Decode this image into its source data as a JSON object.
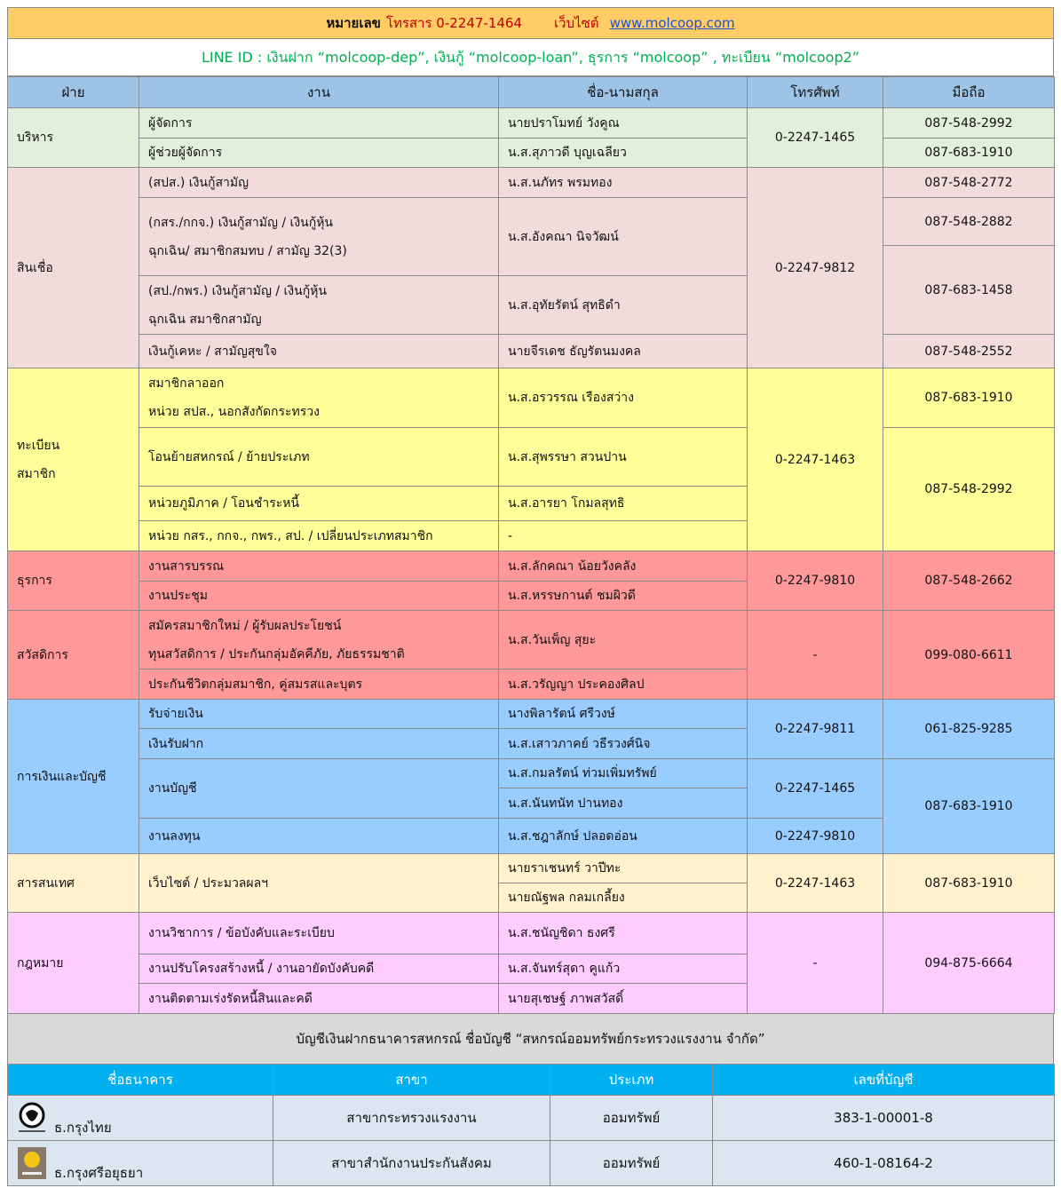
{
  "header": {
    "fax_label": "หมายเลข",
    "fax": "โทรสาร 0-2247-1464",
    "website_label": "เว็บไซต์",
    "website": "www.molcoop.com",
    "line_ids": "LINE ID :  เงินฝาก “molcoop-dep”,   เงินกู้ “molcoop-loan”,   ธุรการ “molcoop” ,   ทะเบียน “molcoop2”"
  },
  "columns": [
    "ฝ่าย",
    "งาน",
    "ชื่อ-นามสกุล",
    "โทรศัพท์",
    "มือถือ"
  ],
  "departments": [
    {
      "name": "บริหาร",
      "color": "#e2efda",
      "jobs": [
        "ผู้จัดการ",
        "ผู้ช่วยผู้จัดการ"
      ],
      "staff": [
        "นายปราโมทย์  วังคูณ",
        "น.ส.สุภาวดี  บุญเฉลียว"
      ],
      "phones": [
        "0-2247-1465"
      ],
      "mobiles": [
        "087-548-2992",
        "087-683-1910"
      ]
    },
    {
      "name": "สินเชื่อ",
      "color": "#f2dcdb",
      "jobs": [
        "(สปส.) เงินกู้สามัญ",
        "(กสร./กกจ.) เงินกู้สามัญ / เงินกู้หุ้น\nฉุกเฉิน/ สมาชิกสมทบ / สามัญ 32(3)",
        "(สป./กพร.) เงินกู้สามัญ / เงินกู้หุ้น\nฉุกเฉิน สมาชิกสามัญ",
        "เงินกู้เคหะ / สามัญสุขใจ"
      ],
      "staff": [
        "น.ส.นภัทร  พรมทอง",
        "น.ส.อังคณา นิจวัฒน์",
        "น.ส.อุทัยรัตน์ สุทธิดำ",
        "นายจีรเดช  ธัญรัตนมงคล"
      ],
      "phones": [
        "0-2247-9812"
      ],
      "mobiles": [
        "087-548-2772",
        "087-548-2882",
        "087-683-1458",
        "087-548-2552"
      ]
    },
    {
      "name": "ทะเบียน\nสมาชิก",
      "color": "#ffff99",
      "jobs": [
        "สมาชิกลาออก\nหน่วย สปส., นอกสังกัดกระทรวง",
        "โอนย้ายสหกรณ์ / ย้ายประเภท",
        "หน่วยภูมิภาค / โอนชำระหนี้",
        "หน่วย กสร., กกจ., กพร., สป. / เปลี่ยนประเภทสมาชิก"
      ],
      "staff": [
        "น.ส.อรวรรณ  เรืองสว่าง",
        "น.ส.สุพรรษา  สวนปาน",
        "น.ส.อารยา  โกมลสุทธิ",
        "-"
      ],
      "phones": [
        "0-2247-1463"
      ],
      "mobiles": [
        "087-683-1910",
        "087-548-2992"
      ]
    },
    {
      "name": "ธุรการ",
      "color": "#ff9999",
      "jobs": [
        "งานสารบรรณ",
        "งานประชุม"
      ],
      "staff": [
        "น.ส.ลักคณา  น้อยวังคลัง",
        "น.ส.หรรษกานต์  ชมผิวดี"
      ],
      "phones": [
        "0-2247-9810"
      ],
      "mobiles": [
        "087-548-2662"
      ]
    },
    {
      "name": "สวัสดิการ",
      "color": "#ff9999",
      "jobs": [
        "สมัครสมาชิกใหม่ / ผู้รับผลประโยชน์\nทุนสวัสดิการ / ประกันกลุ่มอัคคีภัย, ภัยธรรมชาติ",
        "ประกันชีวิตกลุ่มสมาชิก, คู่สมรสและบุตร"
      ],
      "staff": [
        "น.ส.วันเพ็ญ  สุยะ",
        "น.ส.วรัญญา  ประคองศิลป"
      ],
      "phones": [
        "-"
      ],
      "mobiles": [
        "099-080-6611"
      ]
    },
    {
      "name": "การเงินและบัญชี",
      "color": "#99ccff",
      "jobs": [
        "รับจ่ายเงิน",
        "เงินรับฝาก",
        "งานบัญชี",
        "งานลงทุน"
      ],
      "staff": [
        "นางพิลารัตน์  ศรีวงษ์",
        "น.ส.เสาวภาคย์  วธีรวงศ์นิจ",
        "น.ส.กมลรัตน์  ท่วมเพิ่มทรัพย์",
        "น.ส.นันทนัท  ปานทอง",
        "น.ส.ชฎาลักษ์  ปลอดอ่อน"
      ],
      "phones": [
        "0-2247-9811",
        "0-2247-1465",
        "0-2247-9810"
      ],
      "mobiles": [
        "061-825-9285",
        "087-683-1910"
      ]
    },
    {
      "name": "สารสนเทศ",
      "color": "#fff2cc",
      "jobs": [
        "เว็บไซต์ / ประมวลผลฯ"
      ],
      "staff": [
        "นายราเชนทร์  วาปีทะ",
        "นายณัฐพล  กลมเกลี้ยง"
      ],
      "phones": [
        "0-2247-1463"
      ],
      "mobiles": [
        "087-683-1910"
      ]
    },
    {
      "name": "กฎหมาย",
      "color": "#ffccff",
      "jobs": [
        "งานวิชาการ / ข้อบังคับและระเบียบ",
        "งานปรับโครงสร้างหนี้ / งานอายัดบังคับคดี",
        "งานติดตามเร่งรัดหนี้สินและคดี"
      ],
      "staff": [
        "น.ส.ชนัญชิดา  ธงศรี",
        "น.ส.จันทร์สุดา  คูแก้ว",
        "นายสุเชษฐ์  ภาพสวัสดิ์"
      ],
      "phones": [
        "-"
      ],
      "mobiles": [
        "094-875-6664"
      ]
    }
  ],
  "bank": {
    "title": "บัญชีเงินฝากธนาคารสหกรณ์ ชื่อบัญชี “สหกรณ์ออมทรัพย์กระทรวงแรงงาน จำกัด”",
    "columns": [
      "ชื่อธนาคาร",
      "สาขา",
      "ประเภท",
      "เลขที่บัญชี"
    ],
    "rows": [
      {
        "bank": "ธ.กรุงไทย",
        "logo": "krungthai-logo-icon",
        "branch": "สาขากระทรวงแรงงาน",
        "type": "ออมทรัพย์",
        "account": "383-1-00001-8"
      },
      {
        "bank": "ธ.กรุงศรีอยุธยา",
        "logo": "krungsri-logo-icon",
        "branch": "สาขาสำนักงานประกันสังคม",
        "type": "ออมทรัพย์",
        "account": "460-1-08164-2"
      }
    ]
  }
}
